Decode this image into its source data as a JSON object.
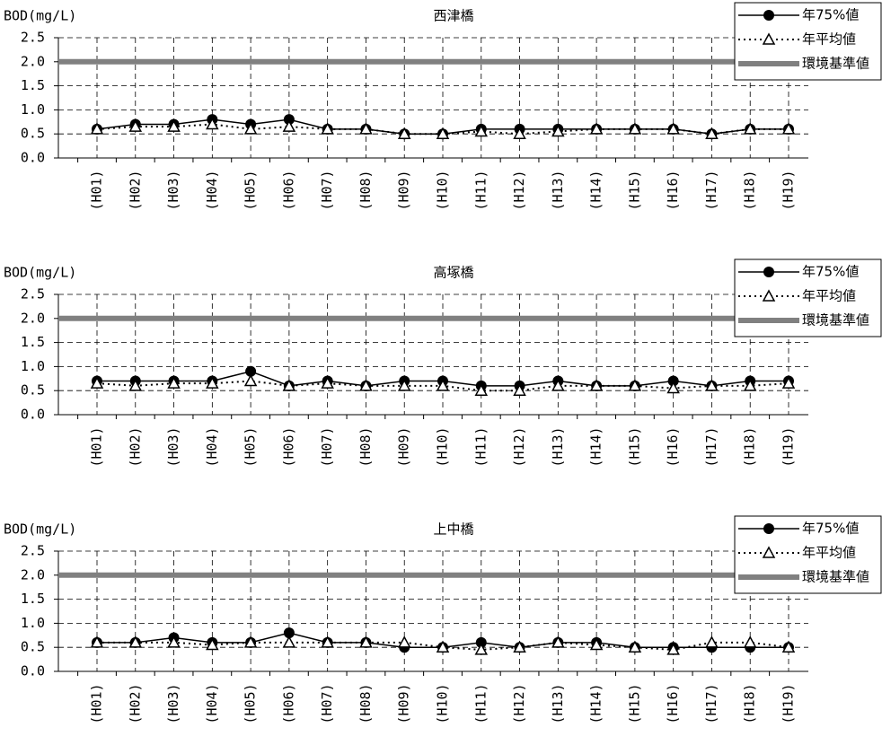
{
  "chart_data": [
    {
      "type": "line",
      "title": "西津橋",
      "ylabel": "BOD(mg/L)",
      "categories": [
        "(H01)",
        "(H02)",
        "(H03)",
        "(H04)",
        "(H05)",
        "(H06)",
        "(H07)",
        "(H08)",
        "(H09)",
        "(H10)",
        "(H11)",
        "(H12)",
        "(H13)",
        "(H14)",
        "(H15)",
        "(H16)",
        "(H17)",
        "(H18)",
        "(H19)"
      ],
      "series": [
        {
          "name": "年75%値",
          "color": "#000000",
          "line_style": "solid",
          "marker": "circle",
          "values": [
            0.6,
            0.7,
            0.7,
            0.8,
            0.7,
            0.8,
            0.6,
            0.6,
            0.5,
            0.5,
            0.6,
            0.6,
            0.6,
            0.6,
            0.6,
            0.6,
            0.5,
            0.6,
            0.6
          ]
        },
        {
          "name": "年平均値",
          "color": "#000000",
          "line_style": "dotted",
          "marker": "triangle",
          "values": [
            0.6,
            0.65,
            0.65,
            0.7,
            0.6,
            0.65,
            0.6,
            0.6,
            0.5,
            0.5,
            0.55,
            0.5,
            0.55,
            0.6,
            0.6,
            0.6,
            0.5,
            0.6,
            0.6
          ]
        },
        {
          "name": "環境基準値",
          "color": "#808080",
          "line_style": "thick",
          "marker": "none",
          "values": [
            2,
            2,
            2,
            2,
            2,
            2,
            2,
            2,
            2,
            2,
            2,
            2,
            2,
            2,
            2,
            2,
            2,
            2,
            2
          ]
        }
      ],
      "ylim": [
        0,
        2.5
      ],
      "yticks": [
        {
          "value": 0,
          "label": "0.0"
        },
        0.5,
        {
          "value": 1,
          "label": "1.0"
        },
        1.5,
        {
          "value": 2,
          "label": "2.0"
        },
        2.5
      ],
      "grid": true,
      "legend": "top-right"
    },
    {
      "type": "line",
      "title": "高塚橋",
      "ylabel": "BOD(mg/L)",
      "categories": [
        "(H01)",
        "(H02)",
        "(H03)",
        "(H04)",
        "(H05)",
        "(H06)",
        "(H07)",
        "(H08)",
        "(H09)",
        "(H10)",
        "(H11)",
        "(H12)",
        "(H13)",
        "(H14)",
        "(H15)",
        "(H16)",
        "(H17)",
        "(H18)",
        "(H19)"
      ],
      "series": [
        {
          "name": "年75%値",
          "color": "#000000",
          "line_style": "solid",
          "marker": "circle",
          "values": [
            0.7,
            0.7,
            0.7,
            0.7,
            0.9,
            0.6,
            0.7,
            0.6,
            0.7,
            0.7,
            0.6,
            0.6,
            0.7,
            0.6,
            0.6,
            0.7,
            0.6,
            0.7,
            0.7
          ]
        },
        {
          "name": "年平均値",
          "color": "#000000",
          "line_style": "dotted",
          "marker": "triangle",
          "values": [
            0.65,
            0.6,
            0.65,
            0.65,
            0.7,
            0.6,
            0.65,
            0.6,
            0.6,
            0.6,
            0.5,
            0.5,
            0.6,
            0.6,
            0.6,
            0.55,
            0.6,
            0.6,
            0.65
          ]
        },
        {
          "name": "環境基準値",
          "color": "#808080",
          "line_style": "thick",
          "marker": "none",
          "values": [
            2,
            2,
            2,
            2,
            2,
            2,
            2,
            2,
            2,
            2,
            2,
            2,
            2,
            2,
            2,
            2,
            2,
            2,
            2
          ]
        }
      ],
      "ylim": [
        0,
        2.5
      ],
      "yticks": [
        {
          "value": 0,
          "label": "0.0"
        },
        0.5,
        {
          "value": 1,
          "label": "1.0"
        },
        1.5,
        {
          "value": 2,
          "label": "2.0"
        },
        2.5
      ],
      "grid": true,
      "legend": "top-right"
    },
    {
      "type": "line",
      "title": "上中橋",
      "ylabel": "BOD(mg/L)",
      "categories": [
        "(H01)",
        "(H02)",
        "(H03)",
        "(H04)",
        "(H05)",
        "(H06)",
        "(H07)",
        "(H08)",
        "(H09)",
        "(H10)",
        "(H11)",
        "(H12)",
        "(H13)",
        "(H14)",
        "(H15)",
        "(H16)",
        "(H17)",
        "(H18)",
        "(H19)"
      ],
      "series": [
        {
          "name": "年75%値",
          "color": "#000000",
          "line_style": "solid",
          "marker": "circle",
          "values": [
            0.6,
            0.6,
            0.7,
            0.6,
            0.6,
            0.8,
            0.6,
            0.6,
            0.5,
            0.5,
            0.6,
            0.5,
            0.6,
            0.6,
            0.5,
            0.5,
            0.5,
            0.5,
            0.5
          ]
        },
        {
          "name": "年平均値",
          "color": "#000000",
          "line_style": "dotted",
          "marker": "triangle",
          "values": [
            0.6,
            0.6,
            0.6,
            0.55,
            0.6,
            0.6,
            0.6,
            0.6,
            0.6,
            0.5,
            0.45,
            0.5,
            0.6,
            0.55,
            0.5,
            0.45,
            0.6,
            0.6,
            0.5
          ]
        },
        {
          "name": "環境基準値",
          "color": "#808080",
          "line_style": "thick",
          "marker": "none",
          "values": [
            2,
            2,
            2,
            2,
            2,
            2,
            2,
            2,
            2,
            2,
            2,
            2,
            2,
            2,
            2,
            2,
            2,
            2,
            2
          ]
        }
      ],
      "ylim": [
        0,
        2.5
      ],
      "yticks": [
        {
          "value": 0,
          "label": "0.0"
        },
        0.5,
        {
          "value": 1,
          "label": "1.0"
        },
        1.5,
        {
          "value": 2,
          "label": "2.0"
        },
        2.5
      ],
      "grid": true,
      "legend": "top-right"
    }
  ]
}
